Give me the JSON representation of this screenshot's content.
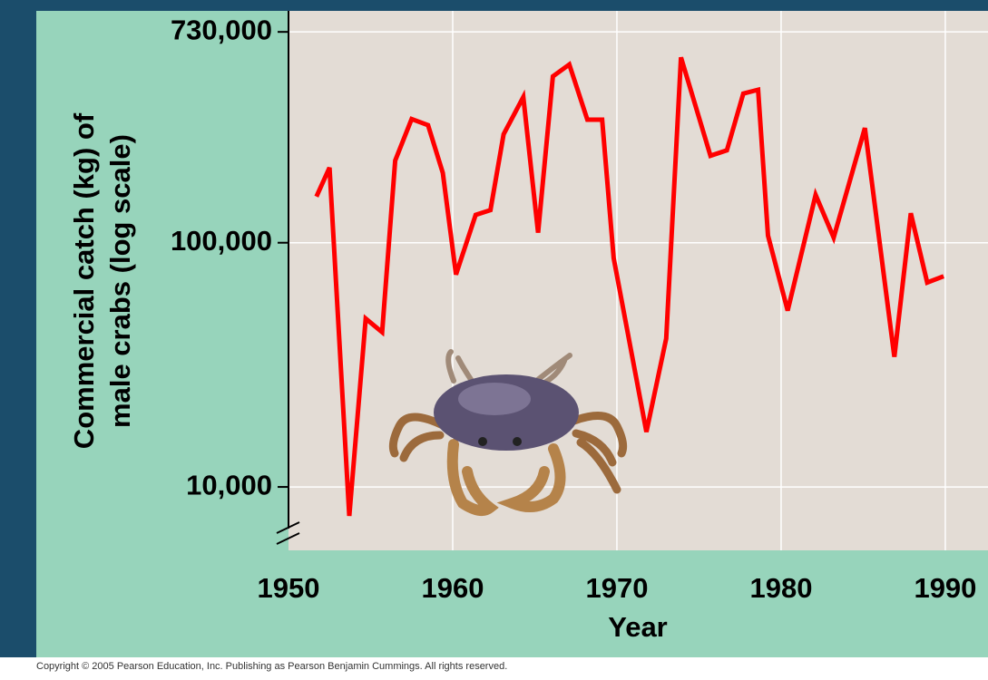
{
  "chart_data": {
    "type": "line",
    "ylabel": [
      "Commercial catch (kg) of",
      "male crabs (log scale)"
    ],
    "xlabel": "Year",
    "x": [
      1951.7,
      1952.5,
      1953.7,
      1954.7,
      1955.7,
      1956.5,
      1957.5,
      1958.5,
      1959.4,
      1960.2,
      1961.4,
      1962.3,
      1963.1,
      1964.3,
      1965.2,
      1966.1,
      1967.1,
      1968.2,
      1969.1,
      1969.8,
      1971.8,
      1973.0,
      1973.9,
      1975.7,
      1976.7,
      1977.7,
      1978.6,
      1979.2,
      1980.4,
      1982.1,
      1983.2,
      1985.1,
      1986.9,
      1987.9,
      1988.9,
      1989.9
    ],
    "values": [
      154500,
      203000,
      7610,
      48900,
      43000,
      217000,
      321000,
      303000,
      193000,
      74100,
      130000,
      136000,
      278000,
      395000,
      110000,
      480000,
      537000,
      319000,
      319000,
      86500,
      16800,
      40500,
      574000,
      227000,
      239000,
      408000,
      423000,
      107000,
      52700,
      157000,
      105000,
      295000,
      34100,
      132000,
      68700,
      72900
    ],
    "color": "#ff0000",
    "xlim": [
      1950,
      1992.6
    ],
    "xticks": [
      1950,
      1960,
      1970,
      1980,
      1990
    ],
    "ylim": [
      5500,
      890000
    ],
    "ylog": true,
    "yticks": [
      {
        "value": 10000,
        "label": "10,000"
      },
      {
        "value": 100000,
        "label": "100,000"
      },
      {
        "value": 730000,
        "label": "730,000"
      }
    ],
    "grid": true
  },
  "copyright": "Copyright © 2005 Pearson Education, Inc. Publishing as Pearson Benjamin Cummings. All rights reserved."
}
